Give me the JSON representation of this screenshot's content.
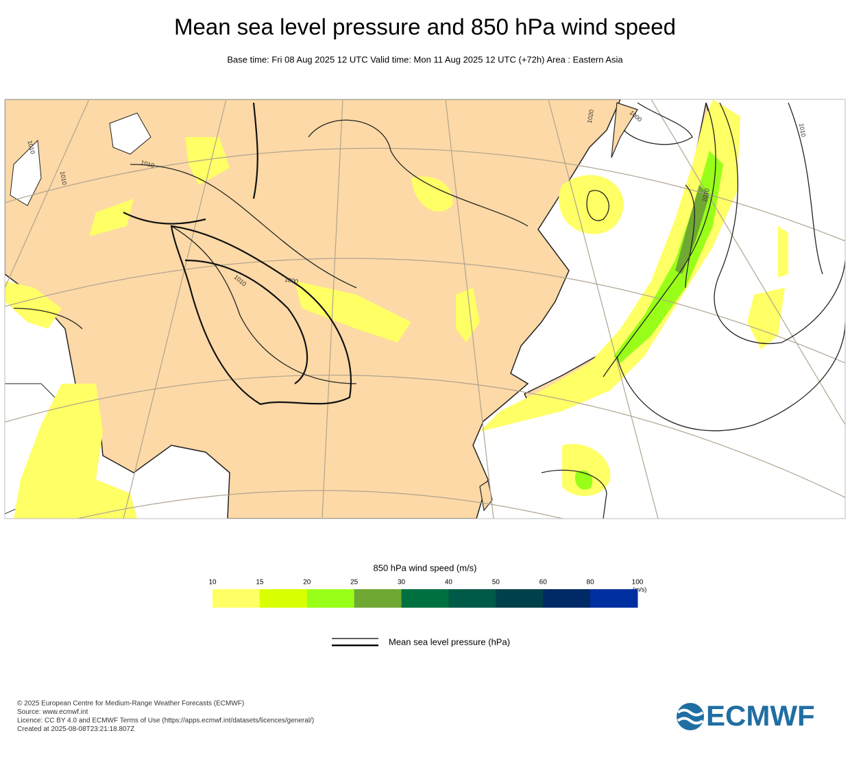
{
  "header": {
    "title": "Mean sea level pressure and 850 hPa wind speed",
    "subtitle": "Base time: Fri 08 Aug 2025 12 UTC Valid time: Mon 11 Aug 2025 12 UTC (+72h) Area : Eastern Asia"
  },
  "map": {
    "contour_labels": [
      "1010",
      "1010",
      "1010",
      "1010",
      "1000",
      "1000",
      "1020",
      "1010",
      "1010"
    ]
  },
  "colorbar": {
    "title": "850 hPa wind speed (m/s)",
    "unit": "(m/s)",
    "ticks": [
      10,
      15,
      20,
      25,
      30,
      40,
      50,
      60,
      80,
      100
    ],
    "colors": [
      "#ffff66",
      "#d9ff00",
      "#99ff19",
      "#6fa832",
      "#007040",
      "#005a48",
      "#00404a",
      "#002a66",
      "#0030a0"
    ]
  },
  "legend": {
    "label": "Mean sea level pressure (hPa)"
  },
  "footer": {
    "lines": [
      "© 2025 European Centre for Medium-Range Weather Forecasts (ECMWF)",
      "Source: www.ecmwf.int",
      "Licence: CC BY 4.0 and ECMWF Terms of Use (https://apps.ecmwf.int/datasets/licences/general/)",
      "Created at 2025-08-08T23:21:18.807Z"
    ],
    "logo": "ECMWF"
  }
}
